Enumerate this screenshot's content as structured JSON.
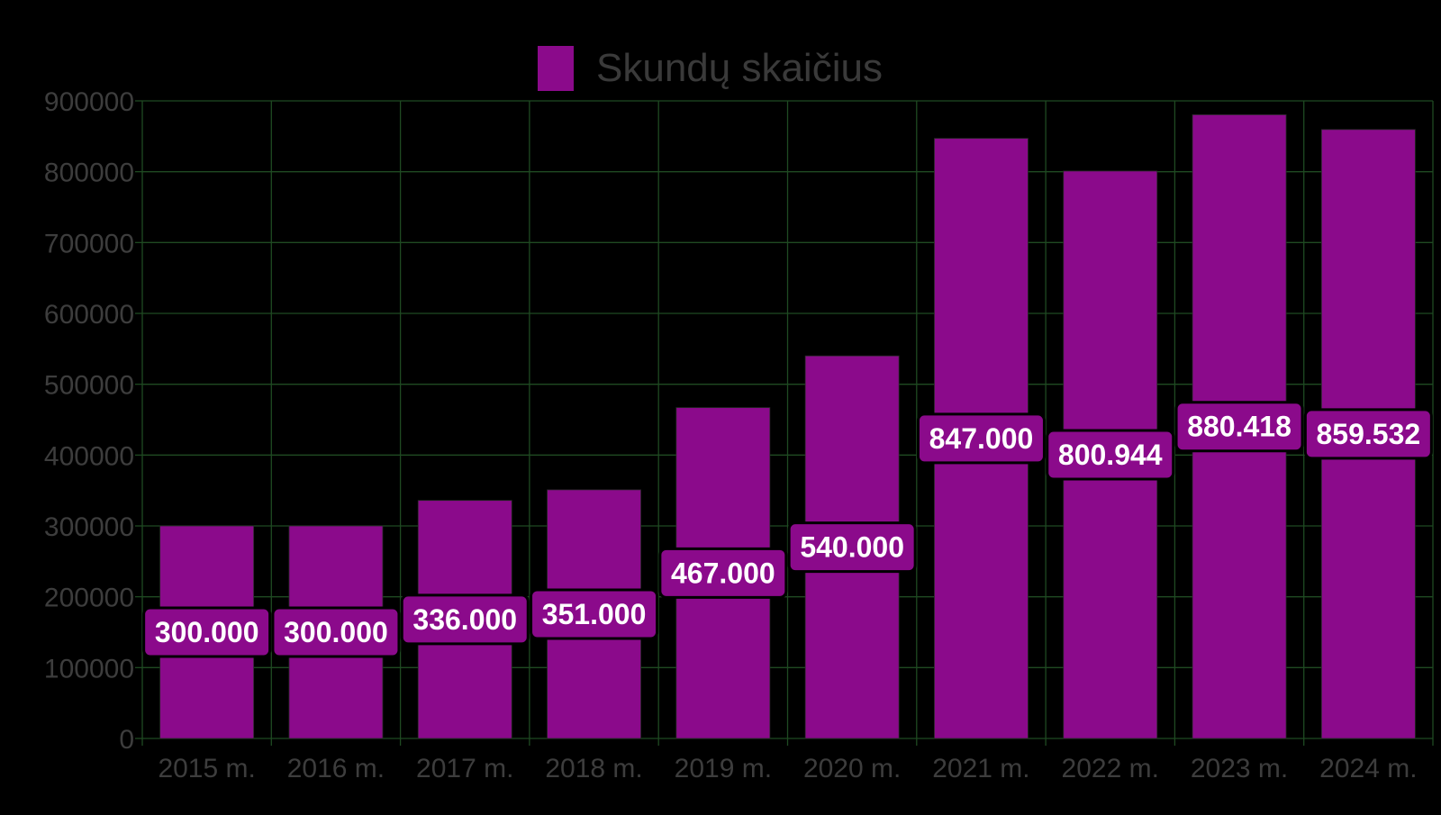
{
  "chart_data": {
    "type": "bar",
    "categories": [
      "2015 m.",
      "2016 m.",
      "2017 m.",
      "2018 m.",
      "2019 m.",
      "2020 m.",
      "2021 m.",
      "2022 m.",
      "2023 m.",
      "2024 m."
    ],
    "series": [
      {
        "name": "Skundų skaičius",
        "values": [
          300000,
          300000,
          336000,
          351000,
          467000,
          540000,
          847000,
          800944,
          880418,
          859532
        ],
        "labels": [
          "300.000",
          "300.000",
          "336.000",
          "351.000",
          "467.000",
          "540.000",
          "847.000",
          "800.944",
          "880.418",
          "859.532"
        ],
        "color": "#8b0a8b"
      }
    ],
    "title": "",
    "xlabel": "",
    "ylabel": "",
    "ylim": [
      0,
      900000
    ],
    "yticks": [
      "0",
      "100000",
      "200000",
      "300000",
      "400000",
      "500000",
      "600000",
      "700000",
      "800000",
      "900000"
    ],
    "grid": true,
    "legend_position": "top-center",
    "colors": {
      "background": "#000000",
      "grid": "#1f4a22",
      "tick_text": "#3d3d3d",
      "label_box": "#8b0a8b",
      "label_text": "#ffffff"
    }
  }
}
